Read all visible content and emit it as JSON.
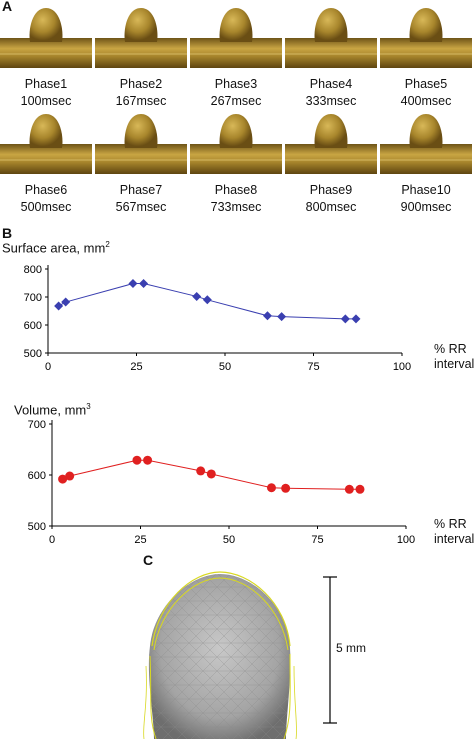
{
  "panels": {
    "a": "A",
    "b": "B",
    "c": "C"
  },
  "phases": [
    {
      "label": "Phase1",
      "time": "100msec"
    },
    {
      "label": "Phase2",
      "time": "167msec"
    },
    {
      "label": "Phase3",
      "time": "267msec"
    },
    {
      "label": "Phase4",
      "time": "333msec"
    },
    {
      "label": "Phase5",
      "time": "400msec"
    },
    {
      "label": "Phase6",
      "time": "500msec"
    },
    {
      "label": "Phase7",
      "time": "567msec"
    },
    {
      "label": "Phase8",
      "time": "733msec"
    },
    {
      "label": "Phase9",
      "time": "800msec"
    },
    {
      "label": "Phase10",
      "time": "900msec"
    }
  ],
  "colors": {
    "aneurysm": "#a8862c",
    "surface_series": "#3a3fb0",
    "volume_series": "#e02020",
    "mesh": "#9a9a9a",
    "contour": "#d8d820"
  },
  "chart_data": [
    {
      "type": "line",
      "title_text": "Surface area, mm",
      "title_sup": "2",
      "xlabel_line1": "% RR",
      "xlabel_line2": "interval",
      "x": [
        3,
        5,
        24,
        27,
        42,
        45,
        62,
        66,
        84,
        87
      ],
      "values": [
        668,
        682,
        748,
        748,
        702,
        690,
        633,
        630,
        622,
        622
      ],
      "xlim": [
        0,
        100
      ],
      "ylim": [
        500,
        800
      ],
      "xticks": [
        "0",
        "25",
        "50",
        "75",
        "100"
      ],
      "yticks": [
        "500",
        "600",
        "700",
        "800"
      ],
      "marker": "diamond"
    },
    {
      "type": "line",
      "title_text": "Volume, mm",
      "title_sup": "3",
      "xlabel_line1": "% RR",
      "xlabel_line2": "interval",
      "x": [
        3,
        5,
        24,
        27,
        42,
        45,
        62,
        66,
        84,
        87
      ],
      "values": [
        592,
        598,
        629,
        629,
        608,
        602,
        575,
        574,
        572,
        572
      ],
      "xlim": [
        0,
        100
      ],
      "ylim": [
        500,
        700
      ],
      "xticks": [
        "0",
        "25",
        "50",
        "75",
        "100"
      ],
      "yticks": [
        "500",
        "600",
        "700"
      ],
      "marker": "circle"
    }
  ],
  "scale_bar": {
    "label": "5 mm"
  }
}
